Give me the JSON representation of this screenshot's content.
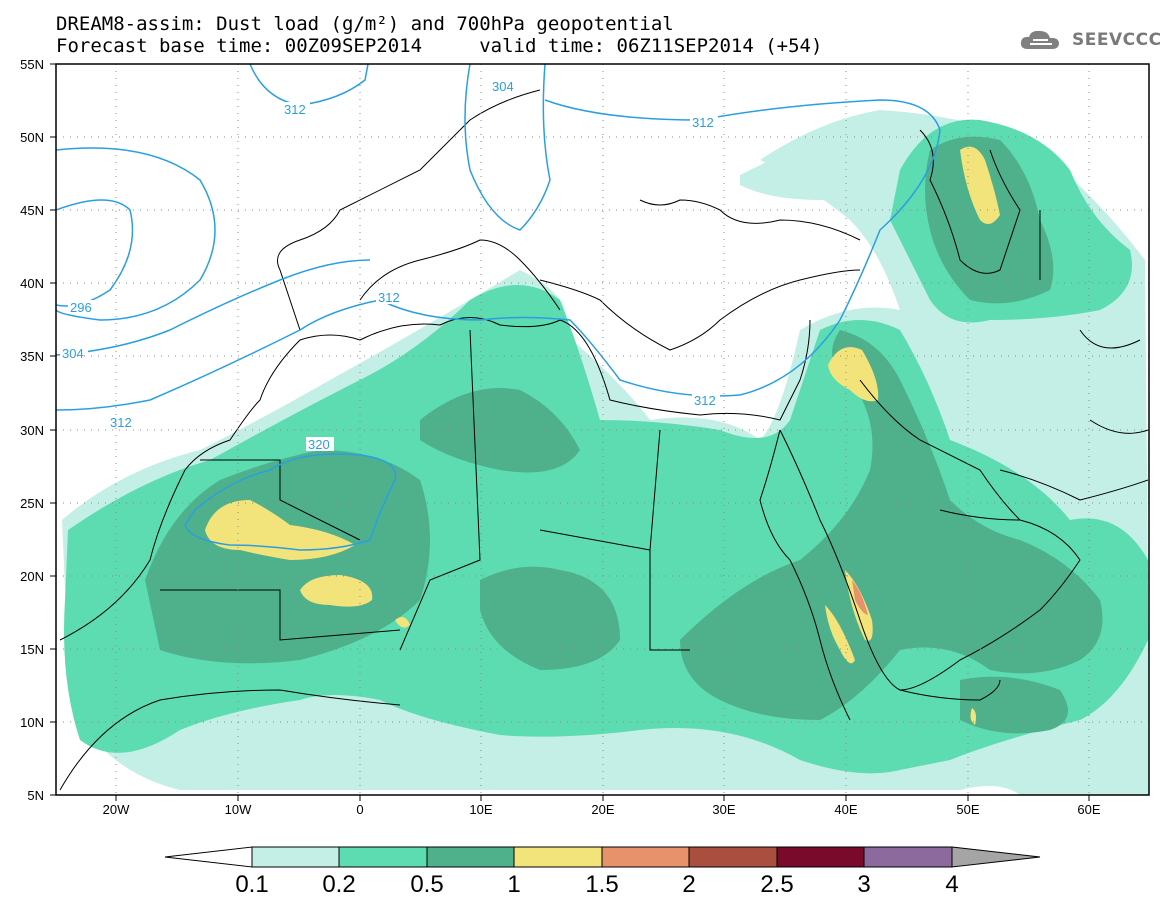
{
  "title_line1": "DREAM8-assim: Dust load (g/m²) and 700hPa geopotential",
  "title_line2": "Forecast base time: 00Z09SEP2014     valid time: 06Z11SEP2014 (+54)",
  "logo_text": "SEEVCCC",
  "lat_labels": [
    "55N",
    "50N",
    "45N",
    "40N",
    "35N",
    "30N",
    "25N",
    "20N",
    "15N",
    "10N",
    "5N"
  ],
  "lon_labels": [
    "20W",
    "10W",
    "0",
    "10E",
    "20E",
    "30E",
    "40E",
    "50E",
    "60E"
  ],
  "contour_labels": [
    "312",
    "304",
    "312",
    "296",
    "304",
    "312",
    "312",
    "312",
    "320"
  ],
  "colorbar": {
    "ticks": [
      "0.1",
      "0.2",
      "0.5",
      "1",
      "1.5",
      "2",
      "2.5",
      "3",
      "4"
    ],
    "colors": [
      "#c3efe6",
      "#5ddcb1",
      "#4fb18c",
      "#f2e47b",
      "#e8926b",
      "#aa4e3f",
      "#7a0a2c",
      "#8c6a9e"
    ],
    "under": "#ffffff",
    "over": "#a5a5a5"
  },
  "colors": {
    "contour": "#2a9fe0",
    "frame": "#000000"
  }
}
